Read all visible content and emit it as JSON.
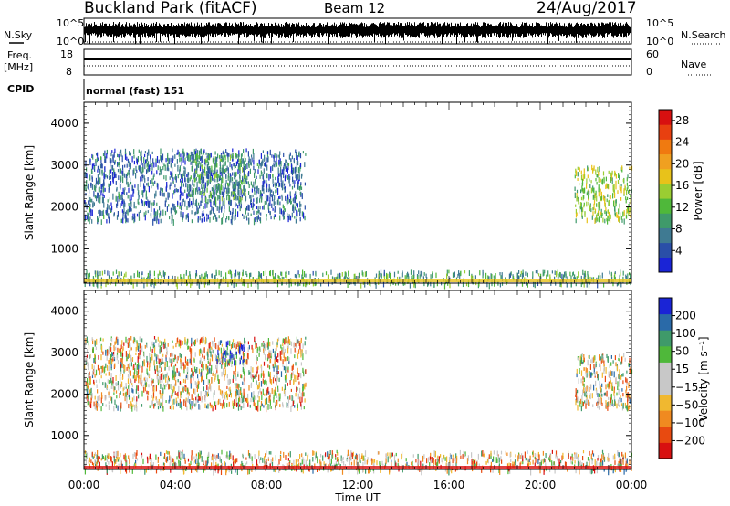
{
  "header": {
    "station": "Buckland Park (fitACF)",
    "beam": "Beam 12",
    "date": "24/Aug/2017"
  },
  "status_panel": {
    "nsky_label": "N.Sky",
    "nsky_ticks": [
      "10^5",
      "10^0"
    ],
    "nsearch_label": "N.Search",
    "freq_label_line1": "Freq.",
    "freq_label_line2": "[MHz]",
    "freq_ticks": [
      "18",
      "8"
    ],
    "nave_label": "Nave",
    "nave_ticks": [
      "60",
      "0"
    ],
    "cpid_label": "CPID",
    "cpid_value": "normal (fast) 151"
  },
  "colors": {
    "power_scale": [
      "#1a24d6",
      "#2a4fa8",
      "#3f7a92",
      "#3f9a6a",
      "#4fb83a",
      "#9acd32",
      "#e8c21a",
      "#f0a020",
      "#f07a10",
      "#e84010",
      "#d81010"
    ],
    "velocity_scale": [
      "#d81010",
      "#e84a10",
      "#f08a20",
      "#f0b830",
      "#c8c8c8",
      "#c8c8c8",
      "#4fb83a",
      "#3f9a6a",
      "#2a6aa8",
      "#1a24d6"
    ]
  },
  "chart_data": [
    {
      "type": "heatmap",
      "panel": "power",
      "xlabel": "",
      "ylabel": "Slant Range [km]",
      "xlim": [
        0,
        24
      ],
      "ylim": [
        180,
        4500
      ],
      "yticks": [
        "1000",
        "2000",
        "3000",
        "4000"
      ],
      "xticks": [
        "00:00",
        "04:00",
        "08:00",
        "12:00",
        "16:00",
        "20:00",
        "00:00"
      ],
      "colorbar": {
        "label": "Power [dB]",
        "range": [
          0,
          30
        ],
        "ticks": [
          "4",
          "8",
          "12",
          "16",
          "20",
          "24",
          "28"
        ]
      },
      "echo_regions": [
        {
          "t_start": 0.0,
          "t_end": 9.7,
          "range_start": 1700,
          "range_end": 3400,
          "value": 6
        },
        {
          "t_start": 4.5,
          "t_end": 7.1,
          "range_start": 2200,
          "range_end": 3300,
          "value": 10
        },
        {
          "t_start": 21.5,
          "t_end": 24.0,
          "range_start": 1700,
          "range_end": 3000,
          "value": 14
        },
        {
          "t_start": 0.0,
          "t_end": 24.0,
          "range_start": 180,
          "range_end": 500,
          "value": 10
        }
      ]
    },
    {
      "type": "heatmap",
      "panel": "velocity",
      "xlabel": "Time UT",
      "ylabel": "Slant Range [km]",
      "xlim": [
        0,
        24
      ],
      "ylim": [
        180,
        4500
      ],
      "yticks": [
        "1000",
        "2000",
        "3000",
        "4000"
      ],
      "xticks": [
        "00:00",
        "04:00",
        "08:00",
        "12:00",
        "16:00",
        "20:00",
        "00:00"
      ],
      "colorbar": {
        "label": "Velocity [m s⁻¹]",
        "range": [
          -250,
          250
        ],
        "ticks": [
          "-200",
          "-100",
          "-50",
          "-15",
          "15",
          "50",
          "100",
          "200"
        ]
      },
      "echo_regions": [
        {
          "t_start": 0.0,
          "t_end": 9.7,
          "range_start": 1700,
          "range_end": 3400,
          "value": -30
        },
        {
          "t_start": 5.8,
          "t_end": 7.0,
          "range_start": 2800,
          "range_end": 3300,
          "value": 200
        },
        {
          "t_start": 21.5,
          "t_end": 24.0,
          "range_start": 1700,
          "range_end": 3000,
          "value": 0
        },
        {
          "t_start": 0.0,
          "t_end": 24.0,
          "range_start": 180,
          "range_end": 650,
          "value": -30
        }
      ]
    }
  ]
}
